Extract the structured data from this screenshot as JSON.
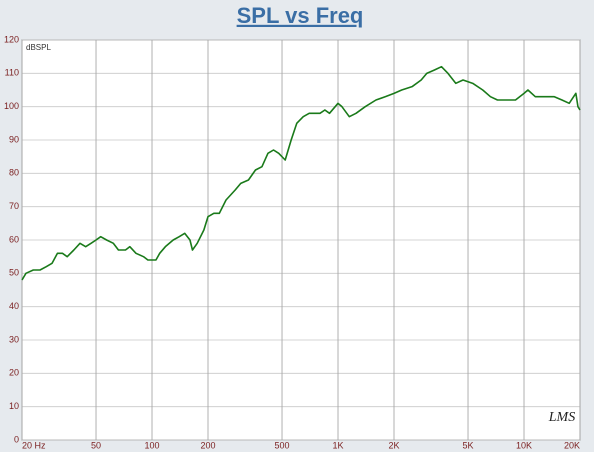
{
  "chart_data": {
    "type": "line",
    "title": "SPL vs Freq",
    "ylabel": "dBSPL",
    "logo": "LMS",
    "xscale": "log",
    "grid": true,
    "xlim": [
      20,
      20000
    ],
    "ylim": [
      0,
      120
    ],
    "xticks": [
      {
        "value": 20,
        "label": "20 Hz"
      },
      50,
      100,
      200,
      500,
      {
        "value": 1000,
        "label": "1K"
      },
      {
        "value": 2000,
        "label": "2K"
      },
      {
        "value": 5000,
        "label": "5K"
      },
      {
        "value": 10000,
        "label": "10K"
      },
      {
        "value": 20000,
        "label": "20K"
      }
    ],
    "yticks": [
      0,
      10,
      20,
      30,
      40,
      50,
      60,
      70,
      80,
      90,
      100,
      110,
      120
    ],
    "x": [
      20,
      21,
      23,
      25,
      27,
      29,
      31,
      33,
      35,
      38,
      41,
      44,
      47,
      50,
      53,
      57,
      62,
      66,
      72,
      76,
      82,
      90,
      95,
      105,
      110,
      118,
      130,
      140,
      150,
      160,
      165,
      175,
      190,
      200,
      215,
      230,
      250,
      280,
      300,
      330,
      360,
      390,
      420,
      450,
      480,
      520,
      560,
      600,
      650,
      700,
      750,
      800,
      850,
      900,
      1000,
      1050,
      1150,
      1250,
      1400,
      1600,
      1800,
      2000,
      2200,
      2500,
      2800,
      3000,
      3300,
      3600,
      3900,
      4300,
      4700,
      5300,
      6000,
      6600,
      7200,
      8000,
      9000,
      10000,
      10500,
      11500,
      13000,
      14500,
      16000,
      17500,
      19000,
      19500,
      20000
    ],
    "series": [
      {
        "name": "SPL",
        "color": "#1a7a1a",
        "values": [
          48,
          50,
          51,
          51,
          52,
          53,
          56,
          56,
          55,
          57,
          59,
          58,
          59,
          60,
          61,
          60,
          59,
          57,
          57,
          58,
          56,
          55,
          54,
          54,
          56,
          58,
          60,
          61,
          62,
          60,
          57,
          59,
          63,
          67,
          68,
          68,
          72,
          75,
          77,
          78,
          81,
          82,
          86,
          87,
          86,
          84,
          90,
          95,
          97,
          98,
          98,
          98,
          99,
          98,
          101,
          100,
          97,
          98,
          100,
          102,
          103,
          104,
          105,
          106,
          108,
          110,
          111,
          112,
          110,
          107,
          108,
          107,
          105,
          103,
          102,
          102,
          102,
          104,
          105,
          103,
          103,
          103,
          102,
          101,
          104,
          100,
          99
        ]
      }
    ]
  }
}
